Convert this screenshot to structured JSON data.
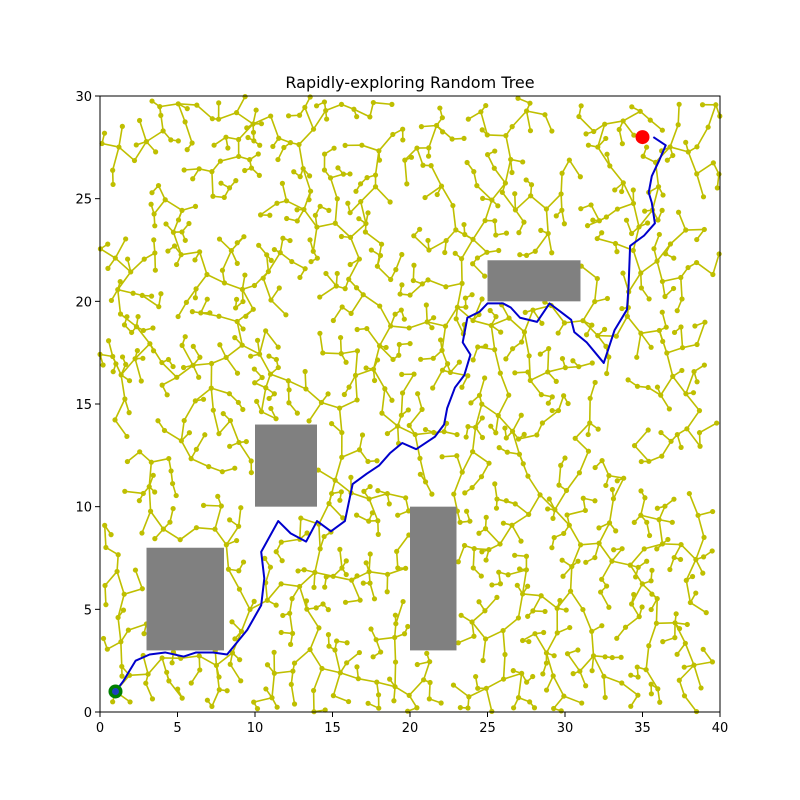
{
  "chart_data": {
    "type": "scatter",
    "title": "Rapidly-exploring Random Tree",
    "xlabel": "",
    "ylabel": "",
    "xlim": [
      0,
      40
    ],
    "ylim": [
      0,
      30
    ],
    "xticks": [
      0,
      5,
      10,
      15,
      20,
      25,
      30,
      35,
      40
    ],
    "yticks": [
      0,
      5,
      10,
      15,
      20,
      25,
      30
    ],
    "grid": false,
    "colors": {
      "tree": "#bfbf00",
      "path": "#0000cc",
      "obstacle": "#808080",
      "start": "#008000",
      "start_inner": "#1f3fbf",
      "goal": "#ff0000"
    },
    "start": [
      1,
      1
    ],
    "goal": [
      35,
      28
    ],
    "obstacles": [
      {
        "x": 3,
        "y": 3,
        "w": 5,
        "h": 5
      },
      {
        "x": 10,
        "y": 10,
        "w": 4,
        "h": 4
      },
      {
        "x": 20,
        "y": 3,
        "w": 3,
        "h": 7
      },
      {
        "x": 25,
        "y": 20,
        "w": 6,
        "h": 2
      }
    ],
    "path": [
      [
        1,
        1
      ],
      [
        1.5,
        1.5
      ],
      [
        2.3,
        2.5
      ],
      [
        3.2,
        2.8
      ],
      [
        4.2,
        2.9
      ],
      [
        5.4,
        2.7
      ],
      [
        6.2,
        2.9
      ],
      [
        7.3,
        2.9
      ],
      [
        8.2,
        2.8
      ],
      [
        9.5,
        4
      ],
      [
        10.4,
        5.2
      ],
      [
        10.6,
        6.5
      ],
      [
        10.4,
        7.8
      ],
      [
        11.5,
        9.3
      ],
      [
        12.3,
        8.7
      ],
      [
        13.3,
        8.3
      ],
      [
        14,
        9.3
      ],
      [
        14.9,
        8.8
      ],
      [
        15.8,
        9.3
      ],
      [
        16.3,
        11.1
      ],
      [
        17.2,
        11.6
      ],
      [
        18,
        12
      ],
      [
        18.7,
        12.6
      ],
      [
        19.5,
        13.1
      ],
      [
        20.4,
        12.8
      ],
      [
        21.6,
        13.4
      ],
      [
        22.2,
        14
      ],
      [
        22.4,
        14.8
      ],
      [
        22.9,
        15.8
      ],
      [
        23.5,
        16.4
      ],
      [
        23.9,
        17.4
      ],
      [
        23.4,
        18
      ],
      [
        23.7,
        19.2
      ],
      [
        24.5,
        19.5
      ],
      [
        25,
        19.9
      ],
      [
        26,
        19.9
      ],
      [
        26.5,
        19.7
      ],
      [
        27.1,
        19.2
      ],
      [
        28.2,
        19
      ],
      [
        29,
        19.9
      ],
      [
        29.7,
        19.5
      ],
      [
        30.4,
        19.1
      ],
      [
        30.6,
        18.5
      ],
      [
        31.4,
        18
      ],
      [
        32.5,
        17
      ],
      [
        33.2,
        18.6
      ],
      [
        34,
        19.6
      ],
      [
        34.1,
        20.7
      ],
      [
        34.2,
        22.7
      ],
      [
        35.1,
        23.2
      ],
      [
        35.8,
        23.8
      ],
      [
        35.6,
        24.8
      ],
      [
        35.4,
        25.3
      ],
      [
        35.6,
        26.1
      ],
      [
        36.1,
        26.9
      ],
      [
        36.5,
        27.6
      ],
      [
        35.7,
        28
      ]
    ],
    "tree_node_count": 1200
  }
}
